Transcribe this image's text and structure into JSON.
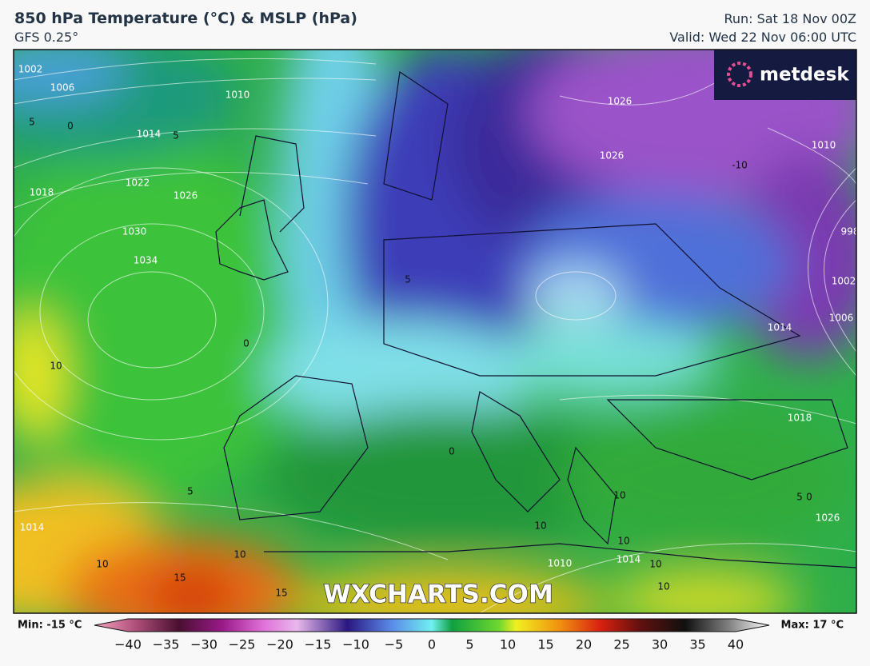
{
  "header": {
    "title": "850 hPa Temperature (°C) & MSLP (hPa)",
    "model": "GFS 0.25°",
    "run": "Run: Sat 18 Nov 00Z",
    "valid": "Valid: Wed 22 Nov 06:00 UTC"
  },
  "logo": "metdesk",
  "watermark": "WXCHARTS.COM",
  "isobar_labels": [
    "1002",
    "1006",
    "1010",
    "1014",
    "1018",
    "1022",
    "1026",
    "1030",
    "1034",
    "1026",
    "1026",
    "1010",
    "998",
    "1002",
    "1006",
    "1014",
    "1018",
    "1026",
    "1014",
    "1014",
    "1010"
  ],
  "isotherm_labels": [
    "5",
    "0",
    "5",
    "10",
    "10",
    "15",
    "10",
    "15",
    "5",
    "0",
    "5",
    "0",
    "10",
    "10",
    "10",
    "10",
    "10",
    "5",
    "0",
    "-10"
  ],
  "colorbar": {
    "min_label": "Min: -15 °C",
    "max_label": "Max: 17 °C",
    "ticks": [
      "−40",
      "−35",
      "−30",
      "−25",
      "−20",
      "−15",
      "−10",
      "−5",
      "0",
      "5",
      "10",
      "15",
      "20",
      "25",
      "30",
      "35",
      "40"
    ]
  }
}
